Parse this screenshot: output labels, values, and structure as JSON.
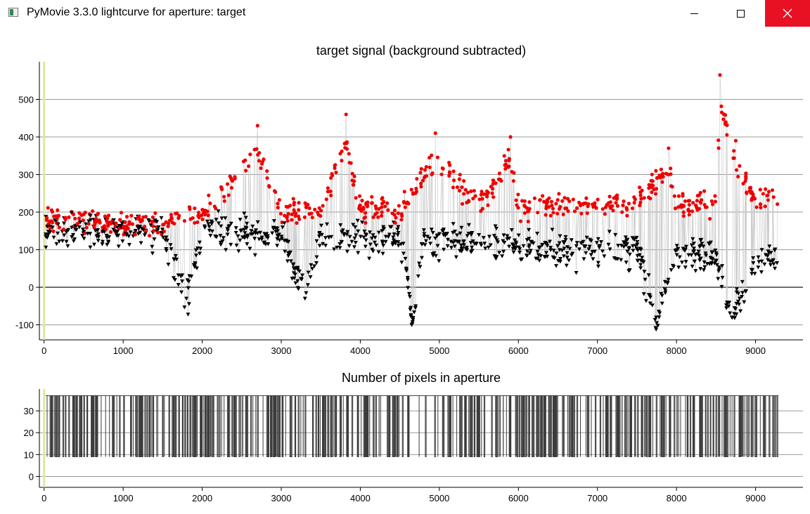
{
  "window": {
    "title": "PyMovie 3.3.0 lightcurve for aperture: target",
    "controls": [
      "minimize",
      "maximize",
      "close"
    ]
  },
  "chart_data": [
    {
      "type": "scatter",
      "title": "target signal (background subtracted)",
      "xlim": [
        -60,
        9600
      ],
      "ylim": [
        -140,
        600
      ],
      "xticks": [
        0,
        1000,
        2000,
        3000,
        4000,
        5000,
        6000,
        7000,
        8000,
        9000
      ],
      "yticks": [
        -100,
        0,
        100,
        200,
        300,
        400,
        500
      ],
      "grid": true,
      "marker_line_value": 0,
      "series": [
        {
          "marker": "triangle-down",
          "color": "#000000",
          "x": [
            0,
            500,
            1000,
            1500,
            1800,
            2000,
            2500,
            3000,
            3300,
            3500,
            4000,
            4500,
            4600,
            4650,
            4700,
            4800,
            5000,
            5500,
            6000,
            6500,
            7000,
            7500,
            7750,
            8000,
            8500,
            8700,
            9000,
            9250
          ],
          "values": [
            150,
            150,
            150,
            150,
            -30,
            150,
            140,
            140,
            -30,
            140,
            130,
            130,
            20,
            -100,
            -50,
            130,
            130,
            120,
            110,
            100,
            100,
            100,
            -95,
            90,
            80,
            -80,
            80,
            90
          ]
        },
        {
          "marker": "circle",
          "color": "#ee0000",
          "x": [
            0,
            500,
            1000,
            1500,
            2000,
            2700,
            3000,
            3500,
            3820,
            4000,
            4500,
            4950,
            5500,
            5900,
            6000,
            6500,
            7000,
            7500,
            7900,
            8000,
            8500,
            8550,
            8750,
            9000,
            9250
          ],
          "values": [
            210,
            210,
            200,
            200,
            220,
            430,
            230,
            240,
            460,
            240,
            240,
            410,
            250,
            400,
            250,
            250,
            260,
            260,
            370,
            260,
            260,
            565,
            390,
            260,
            310
          ]
        }
      ]
    },
    {
      "type": "line",
      "title": "Number of pixels in aperture",
      "xlim": [
        -60,
        9600
      ],
      "ylim": [
        -5,
        40
      ],
      "xticks": [
        0,
        1000,
        2000,
        3000,
        4000,
        5000,
        6000,
        7000,
        8000,
        9000
      ],
      "yticks": [
        0,
        10,
        20,
        30
      ],
      "grid": true,
      "series": [
        {
          "color": "#3c3c3c",
          "levels": [
            37,
            9
          ],
          "x_range": [
            20,
            9290
          ]
        }
      ]
    }
  ]
}
